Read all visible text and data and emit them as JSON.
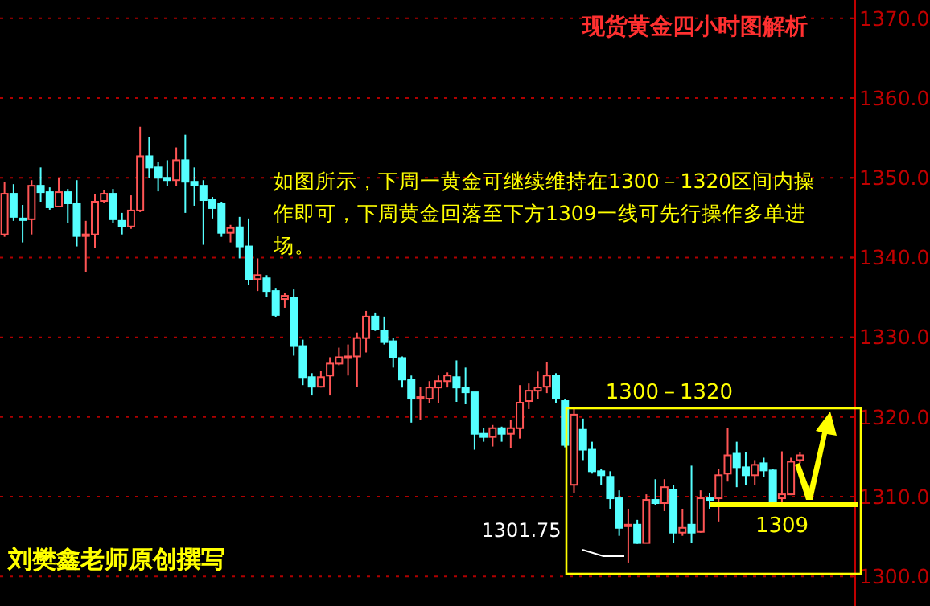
{
  "chart_data": {
    "type": "candlestick",
    "title": "现货黄金四小时图解析",
    "categories": [
      null,
      null,
      null,
      null,
      null,
      null,
      null,
      null,
      null,
      null,
      null,
      null,
      null,
      null,
      null,
      null,
      null,
      null,
      null,
      null,
      null,
      null,
      null,
      null,
      null,
      null,
      null,
      null,
      null,
      null,
      null,
      null,
      null,
      null,
      null,
      null,
      null,
      null,
      null,
      null,
      null,
      null,
      null,
      null,
      null,
      null,
      null,
      null,
      null,
      null,
      null,
      null,
      null,
      null,
      null,
      null,
      null,
      null,
      null,
      null,
      null,
      null,
      null,
      null,
      null,
      null,
      null,
      null,
      null,
      null,
      null,
      null,
      null,
      null,
      null,
      null,
      null,
      null,
      null,
      null,
      null,
      null,
      null,
      null,
      null,
      null,
      null,
      null,
      null
    ],
    "ohlc": [
      [
        1342.9,
        1349.5,
        1342.6,
        1348.0
      ],
      [
        1348.0,
        1349.2,
        1344.6,
        1345.1
      ],
      [
        1344.9,
        1346.6,
        1341.9,
        1344.8
      ],
      [
        1344.8,
        1349.7,
        1342.9,
        1349.0
      ],
      [
        1349.0,
        1351.3,
        1347.0,
        1348.2
      ],
      [
        1348.2,
        1348.8,
        1346.0,
        1346.3
      ],
      [
        1346.4,
        1350.0,
        1346.3,
        1348.2
      ],
      [
        1348.2,
        1348.6,
        1344.3,
        1346.8
      ],
      [
        1346.8,
        1349.7,
        1341.4,
        1342.7
      ],
      [
        1342.8,
        1344.6,
        1338.2,
        1342.9
      ],
      [
        1342.9,
        1348.0,
        1341.2,
        1347.0
      ],
      [
        1347.1,
        1348.5,
        1346.8,
        1348.0
      ],
      [
        1348.0,
        1348.6,
        1344.3,
        1344.8
      ],
      [
        1344.6,
        1345.6,
        1342.9,
        1343.9
      ],
      [
        1343.9,
        1347.8,
        1343.6,
        1345.9
      ],
      [
        1345.9,
        1356.4,
        1345.7,
        1352.7
      ],
      [
        1352.7,
        1355.1,
        1350.0,
        1351.3
      ],
      [
        1351.3,
        1352.0,
        1348.3,
        1350.0
      ],
      [
        1350.0,
        1352.2,
        1349.0,
        1349.7
      ],
      [
        1349.7,
        1353.8,
        1349.0,
        1352.2
      ],
      [
        1352.2,
        1355.4,
        1345.6,
        1349.5
      ],
      [
        1349.5,
        1351.3,
        1346.5,
        1349.1
      ],
      [
        1349.0,
        1349.7,
        1341.6,
        1347.2
      ],
      [
        1347.2,
        1347.6,
        1344.9,
        1346.2
      ],
      [
        1346.8,
        1347.0,
        1342.6,
        1343.1
      ],
      [
        1343.1,
        1344.1,
        1341.9,
        1343.7
      ],
      [
        1343.8,
        1345.1,
        1339.9,
        1341.4
      ],
      [
        1341.4,
        1344.9,
        1336.6,
        1337.3
      ],
      [
        1337.3,
        1339.9,
        1335.8,
        1337.8
      ],
      [
        1337.4,
        1337.8,
        1335.0,
        1335.8
      ],
      [
        1335.8,
        1336.2,
        1332.5,
        1332.8
      ],
      [
        1334.8,
        1335.6,
        1333.7,
        1335.2
      ],
      [
        1335.0,
        1336.0,
        1327.7,
        1328.9
      ],
      [
        1328.9,
        1329.7,
        1324.0,
        1325.0
      ],
      [
        1325.0,
        1325.5,
        1322.7,
        1323.8
      ],
      [
        1323.8,
        1325.8,
        1323.7,
        1325.0
      ],
      [
        1325.2,
        1327.5,
        1322.7,
        1326.7
      ],
      [
        1326.7,
        1328.7,
        1326.5,
        1327.5
      ],
      [
        1327.4,
        1329.1,
        1325.2,
        1327.6
      ],
      [
        1327.6,
        1330.6,
        1323.8,
        1329.9
      ],
      [
        1329.9,
        1333.3,
        1328.1,
        1332.6
      ],
      [
        1332.6,
        1333.1,
        1330.8,
        1331.0
      ],
      [
        1330.8,
        1332.6,
        1329.1,
        1329.4
      ],
      [
        1329.5,
        1329.9,
        1326.2,
        1327.5
      ],
      [
        1327.4,
        1327.6,
        1323.7,
        1324.7
      ],
      [
        1324.7,
        1325.2,
        1319.3,
        1322.3
      ],
      [
        1322.3,
        1323.8,
        1319.6,
        1322.5
      ],
      [
        1322.3,
        1324.5,
        1321.7,
        1323.7
      ],
      [
        1323.7,
        1325.2,
        1321.7,
        1324.5
      ],
      [
        1324.5,
        1325.6,
        1323.7,
        1325.2
      ],
      [
        1325.0,
        1327.1,
        1321.9,
        1323.7
      ],
      [
        1323.7,
        1326.2,
        1321.6,
        1323.1
      ],
      [
        1323.1,
        1323.1,
        1315.9,
        1317.9
      ],
      [
        1317.9,
        1318.6,
        1316.9,
        1317.5
      ],
      [
        1317.5,
        1319.0,
        1316.3,
        1318.6
      ],
      [
        1318.6,
        1318.8,
        1316.9,
        1317.9
      ],
      [
        1317.9,
        1319.6,
        1316.1,
        1318.6
      ],
      [
        1318.6,
        1324.0,
        1317.3,
        1321.8
      ],
      [
        1322.0,
        1324.2,
        1321.0,
        1323.3
      ],
      [
        1323.3,
        1325.7,
        1322.3,
        1323.7
      ],
      [
        1323.8,
        1326.9,
        1323.0,
        1325.2
      ],
      [
        1325.2,
        1325.5,
        1321.7,
        1322.3
      ],
      [
        1322.0,
        1322.2,
        1316.2,
        1316.5
      ],
      [
        1311.5,
        1321.0,
        1310.5,
        1320.3
      ],
      [
        1318.4,
        1319.8,
        1314.6,
        1315.9
      ],
      [
        1315.9,
        1316.9,
        1312.9,
        1313.2
      ],
      [
        1313.2,
        1313.5,
        1311.5,
        1312.7
      ],
      [
        1312.5,
        1313.2,
        1308.5,
        1309.8
      ],
      [
        1309.8,
        1310.8,
        1305.1,
        1306.1
      ],
      [
        1306.3,
        1308.5,
        1301.75,
        1306.5
      ],
      [
        1306.5,
        1307.1,
        1304.1,
        1304.2
      ],
      [
        1304.2,
        1310.3,
        1304.2,
        1309.6
      ],
      [
        1309.6,
        1312.2,
        1309.0,
        1309.2
      ],
      [
        1309.2,
        1312.2,
        1308.2,
        1311.2
      ],
      [
        1310.9,
        1311.5,
        1304.2,
        1305.5
      ],
      [
        1305.5,
        1308.5,
        1305.1,
        1306.1
      ],
      [
        1306.5,
        1313.9,
        1304.2,
        1305.5
      ],
      [
        1305.6,
        1310.8,
        1305.5,
        1309.8
      ],
      [
        1309.8,
        1310.5,
        1308.5,
        1309.6
      ],
      [
        1309.8,
        1313.5,
        1306.9,
        1312.7
      ],
      [
        1312.9,
        1318.6,
        1311.9,
        1315.2
      ],
      [
        1315.4,
        1316.9,
        1311.2,
        1313.7
      ],
      [
        1313.7,
        1315.6,
        1311.5,
        1312.7
      ],
      [
        1312.7,
        1314.6,
        1311.5,
        1314.0
      ],
      [
        1314.2,
        1314.9,
        1312.5,
        1313.3
      ],
      [
        1313.3,
        1313.5,
        1309.5,
        1309.5
      ],
      [
        1309.8,
        1315.7,
        1309.2,
        1310.3
      ],
      [
        1310.3,
        1314.9,
        1310.2,
        1314.4
      ],
      [
        1314.6,
        1315.6,
        1314.2,
        1315.2
      ]
    ],
    "colors": [
      "#ff5555",
      "#55ffff",
      "#55ffff",
      "#ff5555",
      "#55ffff",
      "#55ffff",
      "#ff5555",
      "#55ffff",
      "#55ffff",
      "#ff5555",
      "#ff5555",
      "#ff5555",
      "#55ffff",
      "#55ffff",
      "#ff5555",
      "#ff5555",
      "#55ffff",
      "#55ffff",
      "#55ffff",
      "#ff5555",
      "#55ffff",
      "#55ffff",
      "#55ffff",
      "#55ffff",
      "#55ffff",
      "#ff5555",
      "#55ffff",
      "#55ffff",
      "#ff5555",
      "#55ffff",
      "#55ffff",
      "#ff5555",
      "#55ffff",
      "#55ffff",
      "#55ffff",
      "#ff5555",
      "#ff5555",
      "#ff5555",
      "#ff5555",
      "#ff5555",
      "#ff5555",
      "#55ffff",
      "#55ffff",
      "#55ffff",
      "#55ffff",
      "#55ffff",
      "#ff5555",
      "#ff5555",
      "#ff5555",
      "#ff5555",
      "#55ffff",
      "#55ffff",
      "#55ffff",
      "#55ffff",
      "#ff5555",
      "#55ffff",
      "#ff5555",
      "#ff5555",
      "#ff5555",
      "#ff5555",
      "#ff5555",
      "#55ffff",
      "#55ffff",
      "#ff5555",
      "#55ffff",
      "#55ffff",
      "#55ffff",
      "#55ffff",
      "#55ffff",
      "#ff5555",
      "#55ffff",
      "#ff5555",
      "#55ffff",
      "#ff5555",
      "#55ffff",
      "#ff5555",
      "#55ffff",
      "#ff5555",
      "#55ffff",
      "#ff5555",
      "#ff5555",
      "#55ffff",
      "#55ffff",
      "#ff5555",
      "#55ffff",
      "#55ffff",
      "#ff5555",
      "#ff5555",
      "#ff5555"
    ],
    "ylim": [
      1296.3,
      1372.3
    ],
    "yticks": [
      {
        "value": 1300,
        "label": "1300.0"
      },
      {
        "value": 1310,
        "label": "1310.0"
      },
      {
        "value": 1320,
        "label": "1320.0"
      },
      {
        "value": 1330,
        "label": "1330.0"
      },
      {
        "value": 1340,
        "label": "1340.0"
      },
      {
        "value": 1350,
        "label": "1350.0"
      },
      {
        "value": 1360,
        "label": "1360.0"
      },
      {
        "value": 1370,
        "label": "1370.0"
      }
    ],
    "grid": "y",
    "ref_lines": [
      {
        "axis": "y",
        "value": 1309,
        "label": "1309",
        "color": "#ffff00"
      }
    ],
    "annotations": [
      "1300－1320",
      "如图所示，下周一黄金可继续维持在1300－1320区间内操作即可，下周黄金回落至下方1309一线可先行操作多单进场。",
      "1301.75",
      "刘樊鑫老师原创撰写"
    ]
  }
}
